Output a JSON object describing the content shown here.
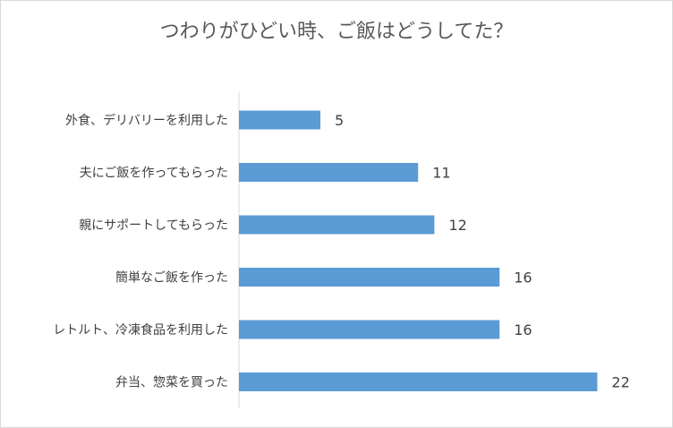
{
  "chart_data": {
    "type": "bar",
    "orientation": "horizontal",
    "title": "つわりがひどい時、ご飯はどうしてた？",
    "categories": [
      "外食、デリバリーを利用した",
      "夫にご飯を作ってもらった",
      "親にサポートしてもらった",
      "簡単なご飯を作った",
      "レトルト、冷凍食品を利用した",
      "弁当、惣菜を買った"
    ],
    "values": [
      5,
      11,
      12,
      16,
      16,
      22
    ],
    "data_labels": true,
    "xlim": [
      0,
      24
    ],
    "grid": false,
    "legend": "none",
    "bar_color": "#5b9bd5",
    "axis_color": "#d9d9d9",
    "text_color": "#404040",
    "title_color": "#595959"
  }
}
